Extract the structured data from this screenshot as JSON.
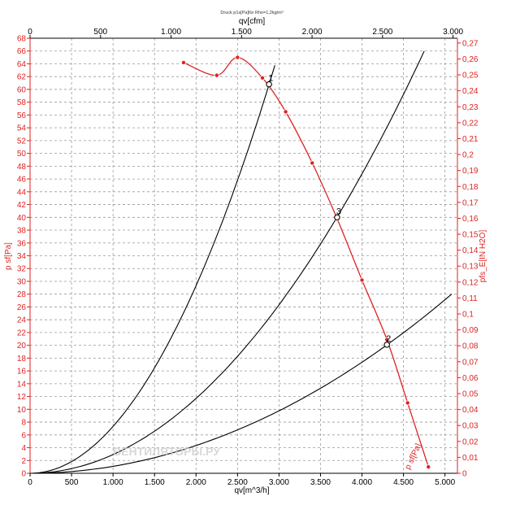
{
  "chart_data": {
    "type": "line",
    "title": "Druck p1s[Pa]für Rho=1,2kg/m³",
    "xlabel": "qv[m^3/h]",
    "x2label": "qv[cfm]",
    "ylabel": "p sf[Pa]",
    "y2label": "pfs_E[IN H2O]",
    "curve_label": "p sf[Pa]",
    "watermark": "ВЕНТИЛЯТОРЫ.РУ",
    "xlim": [
      0,
      5150
    ],
    "ylim": [
      0,
      68
    ],
    "x2lim": [
      0,
      3031
    ],
    "y2lim": [
      0,
      0.273
    ],
    "grid": true,
    "x_ticks": [
      0,
      500,
      1000,
      1500,
      2000,
      2500,
      3000,
      3500,
      4000,
      4500,
      5000
    ],
    "x_tick_labels": [
      "0",
      "500",
      "1.000",
      "1.500",
      "2.000",
      "2.500",
      "3.000",
      "3.500",
      "4.000",
      "4.500",
      "5.000"
    ],
    "x2_ticks": [
      0,
      500,
      1000,
      1500,
      2000,
      2500,
      3000
    ],
    "x2_tick_labels": [
      "0",
      "500",
      "1.000",
      "1.500",
      "2.000",
      "2.500",
      "3.000"
    ],
    "y_ticks": [
      0,
      2,
      4,
      6,
      8,
      10,
      12,
      14,
      16,
      18,
      20,
      22,
      24,
      26,
      28,
      30,
      32,
      34,
      36,
      38,
      40,
      42,
      44,
      46,
      48,
      50,
      52,
      54,
      56,
      58,
      60,
      62,
      64,
      66,
      68
    ],
    "y2_ticks": [
      0,
      0.01,
      0.02,
      0.03,
      0.04,
      0.05,
      0.06,
      0.07,
      0.08,
      0.09,
      0.1,
      0.11,
      0.12,
      0.13,
      0.14,
      0.15,
      0.16,
      0.17,
      0.18,
      0.19,
      0.2,
      0.21,
      0.22,
      0.23,
      0.24,
      0.25,
      0.26,
      0.27
    ],
    "y2_tick_labels": [
      "0",
      "0,01",
      "0,02",
      "0,03",
      "0,04",
      "0,05",
      "0,06",
      "0,07",
      "0,08",
      "0,09",
      "0,1",
      "0,11",
      "0,12",
      "0,13",
      "0,14",
      "0,15",
      "0,16",
      "0,17",
      "0,18",
      "0,19",
      "0,2",
      "0,21",
      "0,22",
      "0,23",
      "0,24",
      "0,25",
      "0,26",
      "0,27"
    ],
    "fan_curve": {
      "color": "#dd2222",
      "points": [
        {
          "x": 1850,
          "y": 64.2
        },
        {
          "x": 2250,
          "y": 62.2
        },
        {
          "x": 2500,
          "y": 65.0
        },
        {
          "x": 2800,
          "y": 61.8
        },
        {
          "x": 3080,
          "y": 56.5
        },
        {
          "x": 3400,
          "y": 48.5
        },
        {
          "x": 3700,
          "y": 39.8
        },
        {
          "x": 4000,
          "y": 30.2
        },
        {
          "x": 4300,
          "y": 20.9
        },
        {
          "x": 4550,
          "y": 11.0
        },
        {
          "x": 4800,
          "y": 1.0
        }
      ]
    },
    "system_curves": [
      {
        "label": "1",
        "k": 7.327e-06,
        "x_end": 2950,
        "op": {
          "x": 2880,
          "y": 60.8
        }
      },
      {
        "label": "3",
        "k": 2.925e-06,
        "x_end": 4750,
        "op": {
          "x": 3700,
          "y": 40.0
        }
      },
      {
        "label": "2",
        "k": 1.085e-06,
        "x_end": 5080,
        "op": {
          "x": 4300,
          "y": 20.1
        }
      }
    ]
  }
}
